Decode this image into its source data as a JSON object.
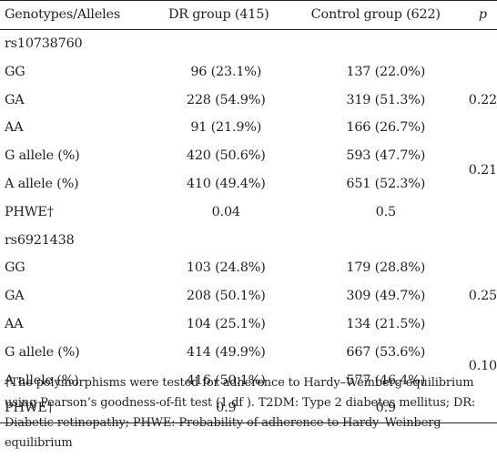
{
  "headers": {
    "label": "Genotypes/Alleles",
    "dr": "DR group (415)",
    "control": "Control group (622)",
    "p": "p"
  },
  "snp1": {
    "name": "rs10738760",
    "rows": [
      {
        "label": "GG",
        "dr": "96 (23.1%)",
        "control": "137 (22.0%)"
      },
      {
        "label": "GA",
        "dr": "228 (54.9%)",
        "control": "319 (51.3%)"
      },
      {
        "label": "AA",
        "dr": "91 (21.9%)",
        "control": "166 (26.7%)"
      },
      {
        "label": "G allele (%)",
        "dr": "420 (50.6%)",
        "control": "593 (47.7%)"
      },
      {
        "label": "A allele (%)",
        "dr": "410 (49.4%)",
        "control": "651 (52.3%)"
      },
      {
        "label": "PHWE†",
        "dr": "0.04",
        "control": "0.5"
      }
    ],
    "p_genotype": "0.22",
    "p_allele": "0.21"
  },
  "snp2": {
    "name": "rs6921438",
    "rows": [
      {
        "label": "GG",
        "dr": "103 (24.8%)",
        "control": "179 (28.8%)"
      },
      {
        "label": "GA",
        "dr": "208 (50.1%)",
        "control": "309 (49.7%)"
      },
      {
        "label": "AA",
        "dr": "104 (25.1%)",
        "control": "134 (21.5%)"
      },
      {
        "label": "G allele (%)",
        "dr": "414 (49.9%)",
        "control": "667 (53.6%)"
      },
      {
        "label": "A allele (%)",
        "dr": "416 (50.1%)",
        "control": "577 (46.4%)"
      },
      {
        "label": "PHWE†",
        "dr": "0.9",
        "control": "0.9"
      }
    ],
    "p_genotype": "0.25",
    "p_allele": "0.10"
  },
  "footnote": "†The polymorphisms were tested for adherence to Hardy–Weinberg equilibrium using Pearson’s goodness-of-fit test (1 df ). T2DM: Type 2 diabetes mellitus; DR: Diabetic retinopathy; PHWE: Probability of adherence to Hardy–Weinberg equilibrium"
}
